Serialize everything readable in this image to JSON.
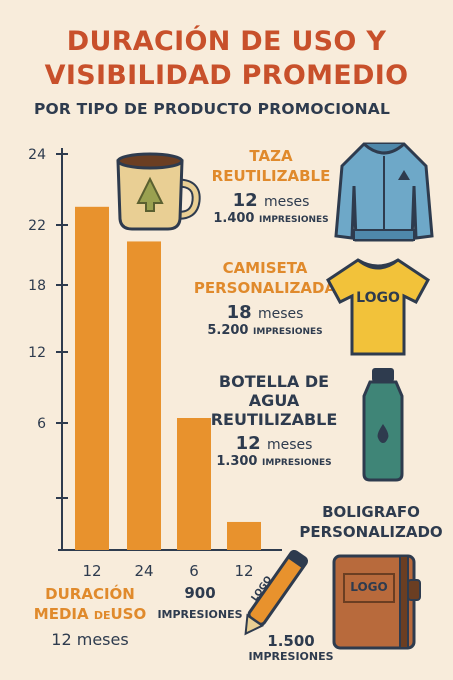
{
  "header": {
    "title_line1": "DURACIÓN DE USO Y",
    "title_line2": "VISIBILIDAD PROMEDIO",
    "subtitle": "POR TIPO DE PRODUCTO PROMOCIONAL"
  },
  "colors": {
    "background": "#f8ecdb",
    "bar": "#e8922d",
    "title": "#c8502b",
    "accent": "#e08a2c",
    "text": "#2e3b4e"
  },
  "chart_data": {
    "type": "bar",
    "y_ticks": [
      "24",
      "22",
      "18",
      "12",
      "6"
    ],
    "x_tick_labels": [
      "12",
      "24",
      "6",
      "12"
    ],
    "values": [
      20.8,
      18.7,
      8.0,
      1.7
    ],
    "ylim": [
      0,
      24
    ],
    "grid": false
  },
  "products": [
    {
      "name": "TAZA\nREUTILIZABLE",
      "months": "12",
      "months_unit": "meses",
      "impressions": "1.400",
      "impressions_unit": "IMPRESIONES",
      "icon": "mug-icon"
    },
    {
      "name": "CAMISETA\nPERSONALIZADA",
      "months": "18",
      "months_unit": "meses",
      "impressions": "5.200",
      "impressions_unit": "IMPRESIONES",
      "icon": "tshirt-icon",
      "icon_text": "LOGO"
    },
    {
      "name": "BOTELLA DE\nAGUA\nREUTILIZABLE",
      "months": "12",
      "months_unit": "meses",
      "impressions": "1.300",
      "impressions_unit": "IMPRESIONES",
      "icon": "water-bottle-icon"
    },
    {
      "name": "BOLIGRAFO\nPERSONALIZADO",
      "impressions": "1.500",
      "impressions_unit": "IMPRESIONES",
      "icon": "notebook-icon",
      "icon_text": "LOGO"
    }
  ],
  "jacket_icon": "jacket-icon",
  "pen_icon": {
    "name": "pen-icon",
    "text": "LOGO"
  },
  "footer": {
    "duration_label_1": "DURACIÓN",
    "duration_label_2a": "MEDIA",
    "duration_label_2b": "DE",
    "duration_label_2c": "USO",
    "duration_value": "12 meses",
    "impressions_value": "900",
    "impressions_unit": "IMPRESIONES"
  }
}
